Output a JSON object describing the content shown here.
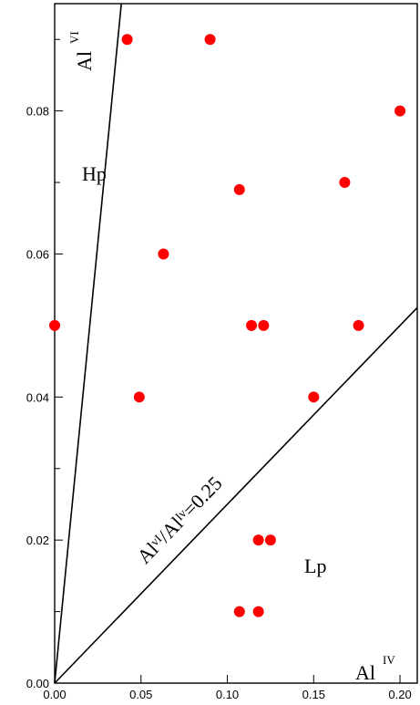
{
  "chart_data": {
    "type": "scatter",
    "xlim": [
      0,
      0.21
    ],
    "ylim": [
      0,
      0.095
    ],
    "x_ticks": [
      0.0,
      0.05,
      0.1,
      0.15,
      0.2
    ],
    "x_tick_labels": [
      "0.00",
      "0.05",
      "0.10",
      "0.15",
      "0.20"
    ],
    "y_ticks": [
      0.0,
      0.02,
      0.04,
      0.06,
      0.08
    ],
    "y_tick_labels": [
      "0.00",
      "0.02",
      "0.04",
      "0.06",
      "0.08"
    ],
    "y_minor_ticks": [
      0.01,
      0.03,
      0.05,
      0.07,
      0.09
    ],
    "x_axis_label": {
      "base": "Al",
      "sup": "IV"
    },
    "y_axis_label": {
      "base": "Al",
      "sup": "VI"
    },
    "region_labels": {
      "upper": "Hp",
      "lower": "Lp"
    },
    "boundary_line_label": "Alᵛᴵ/Alᴵᵛ=0.25",
    "boundary_line_slope": 0.25,
    "steep_line_slope": 2.46,
    "marker_color": "#ff0000",
    "points": [
      {
        "x": 0.0,
        "y": 0.05
      },
      {
        "x": 0.042,
        "y": 0.09
      },
      {
        "x": 0.09,
        "y": 0.09
      },
      {
        "x": 0.2,
        "y": 0.08
      },
      {
        "x": 0.107,
        "y": 0.069
      },
      {
        "x": 0.168,
        "y": 0.07
      },
      {
        "x": 0.063,
        "y": 0.06
      },
      {
        "x": 0.114,
        "y": 0.05
      },
      {
        "x": 0.121,
        "y": 0.05
      },
      {
        "x": 0.176,
        "y": 0.05
      },
      {
        "x": 0.049,
        "y": 0.04
      },
      {
        "x": 0.15,
        "y": 0.04
      },
      {
        "x": 0.118,
        "y": 0.02
      },
      {
        "x": 0.125,
        "y": 0.02
      },
      {
        "x": 0.107,
        "y": 0.01
      },
      {
        "x": 0.118,
        "y": 0.01
      }
    ]
  }
}
